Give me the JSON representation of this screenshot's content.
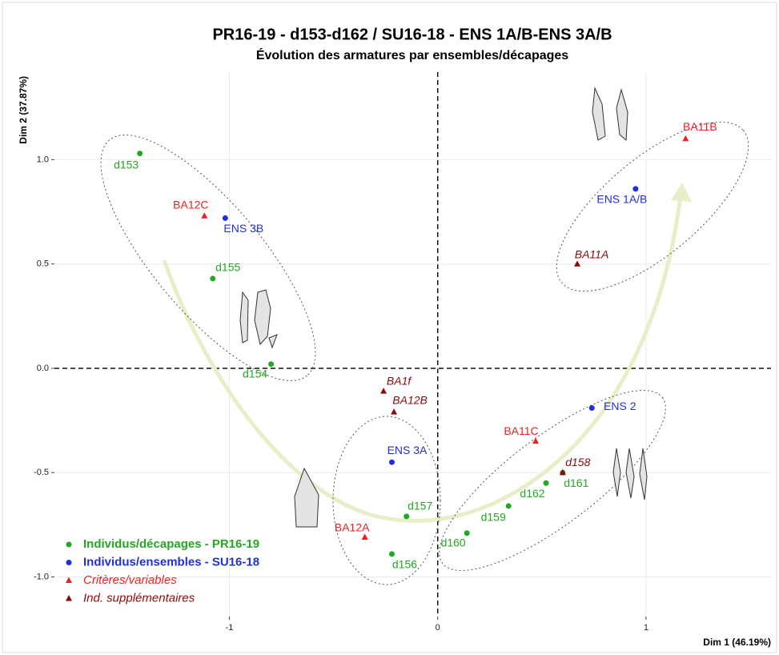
{
  "chart_data": {
    "type": "scatter",
    "title": "PR16-19 - d153-d162 / SU16-18 - ENS 1A/B-ENS 3A/B",
    "subtitle": "Évolution des armatures par ensembles/décapages",
    "xlabel": "Dim 1 (46.19%)",
    "ylabel": "Dim 2 (37.87%)",
    "xlim": [
      -1.84,
      1.6
    ],
    "ylim": [
      -1.19,
      1.42
    ],
    "xticks": [
      -1,
      0,
      1
    ],
    "yticks": [
      {
        "value": -1,
        "label": "-1.0"
      },
      -0.5,
      {
        "value": 0,
        "label": "0.0"
      },
      0.5,
      {
        "value": 1,
        "label": "1.0"
      }
    ],
    "grid": true,
    "legend": "bottom-left",
    "series": [
      {
        "name": "Individus/décapages - PR16-19",
        "color": "#22a822",
        "marker": "circle",
        "labels": [
          "d153",
          "d155",
          "d154",
          "d157",
          "d156",
          "d160",
          "d159",
          "d162",
          "d161"
        ],
        "x": [
          -1.43,
          -1.08,
          -0.8,
          -0.15,
          -0.22,
          0.14,
          0.34,
          0.52,
          0.6
        ],
        "y": [
          1.03,
          0.43,
          0.02,
          -0.71,
          -0.89,
          -0.79,
          -0.66,
          -0.55,
          -0.5
        ]
      },
      {
        "name": "Individus/ensembles - SU16-18",
        "color": "#1f2fe0",
        "marker": "circle",
        "labels": [
          "ENS 3B",
          "ENS 3A",
          "ENS 2",
          "ENS 1A/B"
        ],
        "x": [
          -1.02,
          -0.22,
          0.74,
          0.95
        ],
        "y": [
          0.72,
          -0.45,
          -0.19,
          0.86
        ]
      },
      {
        "name": "Critères/variables",
        "color": "#f02020",
        "marker": "triangle",
        "labels": [
          "BA12C",
          "BA12A",
          "BA11C",
          "BA11B"
        ],
        "x": [
          -1.12,
          -0.35,
          0.47,
          1.19
        ],
        "y": [
          0.73,
          -0.81,
          -0.35,
          1.1
        ]
      },
      {
        "name": "Ind. supplémentaires",
        "color": "#8b0a0a",
        "marker": "triangle",
        "labels": [
          "BA1f",
          "BA12B",
          "d158",
          "BA11A"
        ],
        "x": [
          -0.26,
          -0.21,
          0.6,
          0.67
        ],
        "y": [
          -0.11,
          -0.21,
          -0.5,
          0.5
        ]
      }
    ]
  }
}
